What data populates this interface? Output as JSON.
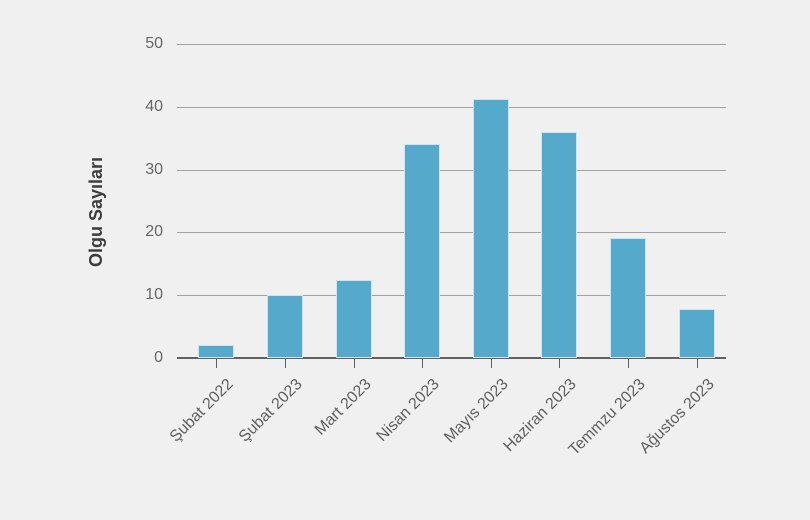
{
  "chart_data": {
    "type": "bar",
    "title": "",
    "xlabel": "",
    "ylabel": "Olgu Sayıları",
    "categories": [
      "Şubat 2022",
      "Şubat 2023",
      "Mart 2023",
      "Nisan 2023",
      "Mayıs 2023",
      "Haziran 2023",
      "Temmzu 2023",
      "Ağustos 2023"
    ],
    "values": [
      2,
      10,
      12.4,
      34.1,
      41.2,
      36,
      19.1,
      7.8
    ],
    "ylim": [
      0,
      50
    ],
    "yticks": [
      0,
      10,
      20,
      30,
      40,
      50
    ],
    "grid": true,
    "legend_position": "none",
    "colors": {
      "background": "#f0f0f0",
      "bar_fill": "#55aacb",
      "bar_edge": "#cfe4ee",
      "gridline": "#a3a3a3",
      "axis_line": "#616161",
      "tick_label": "#676767",
      "x_label": "#5f5f5f",
      "axis_title": "#3d3d3d"
    }
  }
}
